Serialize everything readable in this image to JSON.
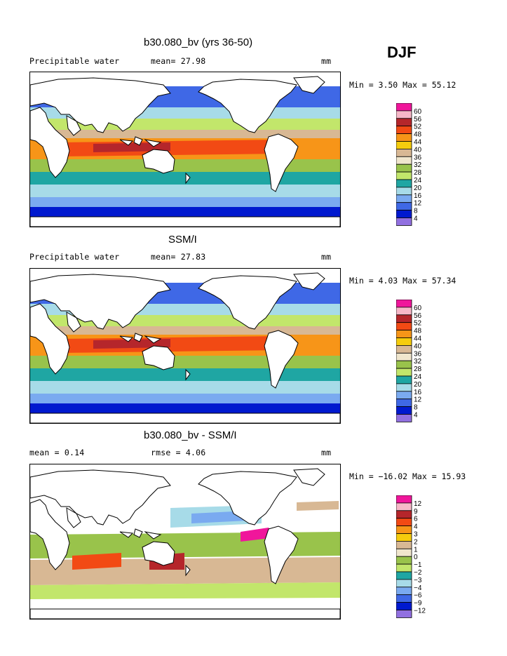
{
  "season": "DJF",
  "panels": [
    {
      "title": "b30.080_bv (yrs 36-50)",
      "left_label": "Precipitable water",
      "center_label": "mean=  27.98",
      "units": "mm",
      "minmax": "Min =    3.50 Max =  55.12",
      "legend_labels": [
        "60",
        "56",
        "52",
        "48",
        "44",
        "40",
        "36",
        "32",
        "28",
        "24",
        "20",
        "16",
        "12",
        "8",
        "4"
      ]
    },
    {
      "title": "SSM/I",
      "left_label": "Precipitable water",
      "center_label": "mean=  27.83",
      "units": "mm",
      "minmax": "Min =    4.03 Max =  57.34",
      "legend_labels": [
        "60",
        "56",
        "52",
        "48",
        "44",
        "40",
        "36",
        "32",
        "28",
        "24",
        "20",
        "16",
        "12",
        "8",
        "4"
      ]
    },
    {
      "title": "b30.080_bv - SSM/I",
      "left_label": "mean =    0.14",
      "center_label": "rmse =    4.06",
      "units": "mm",
      "minmax": "Min = −16.02 Max =  15.93",
      "legend_labels": [
        "12",
        "9",
        "6",
        "4",
        "3",
        "2",
        "1",
        "0",
        "−1",
        "−2",
        "−3",
        "−4",
        "−6",
        "−9",
        "−12"
      ]
    }
  ],
  "colors": {
    "palette": [
      "#f0169b",
      "#f7b8c8",
      "#b5262b",
      "#f24a14",
      "#f79518",
      "#f5cc0d",
      "#d8b894",
      "#f0e6cd",
      "#99c34b",
      "#c2e66b",
      "#1fa6a3",
      "#a7dbe8",
      "#7aaaf0",
      "#3f68e6",
      "#0019cf",
      "#9170e0"
    ]
  }
}
